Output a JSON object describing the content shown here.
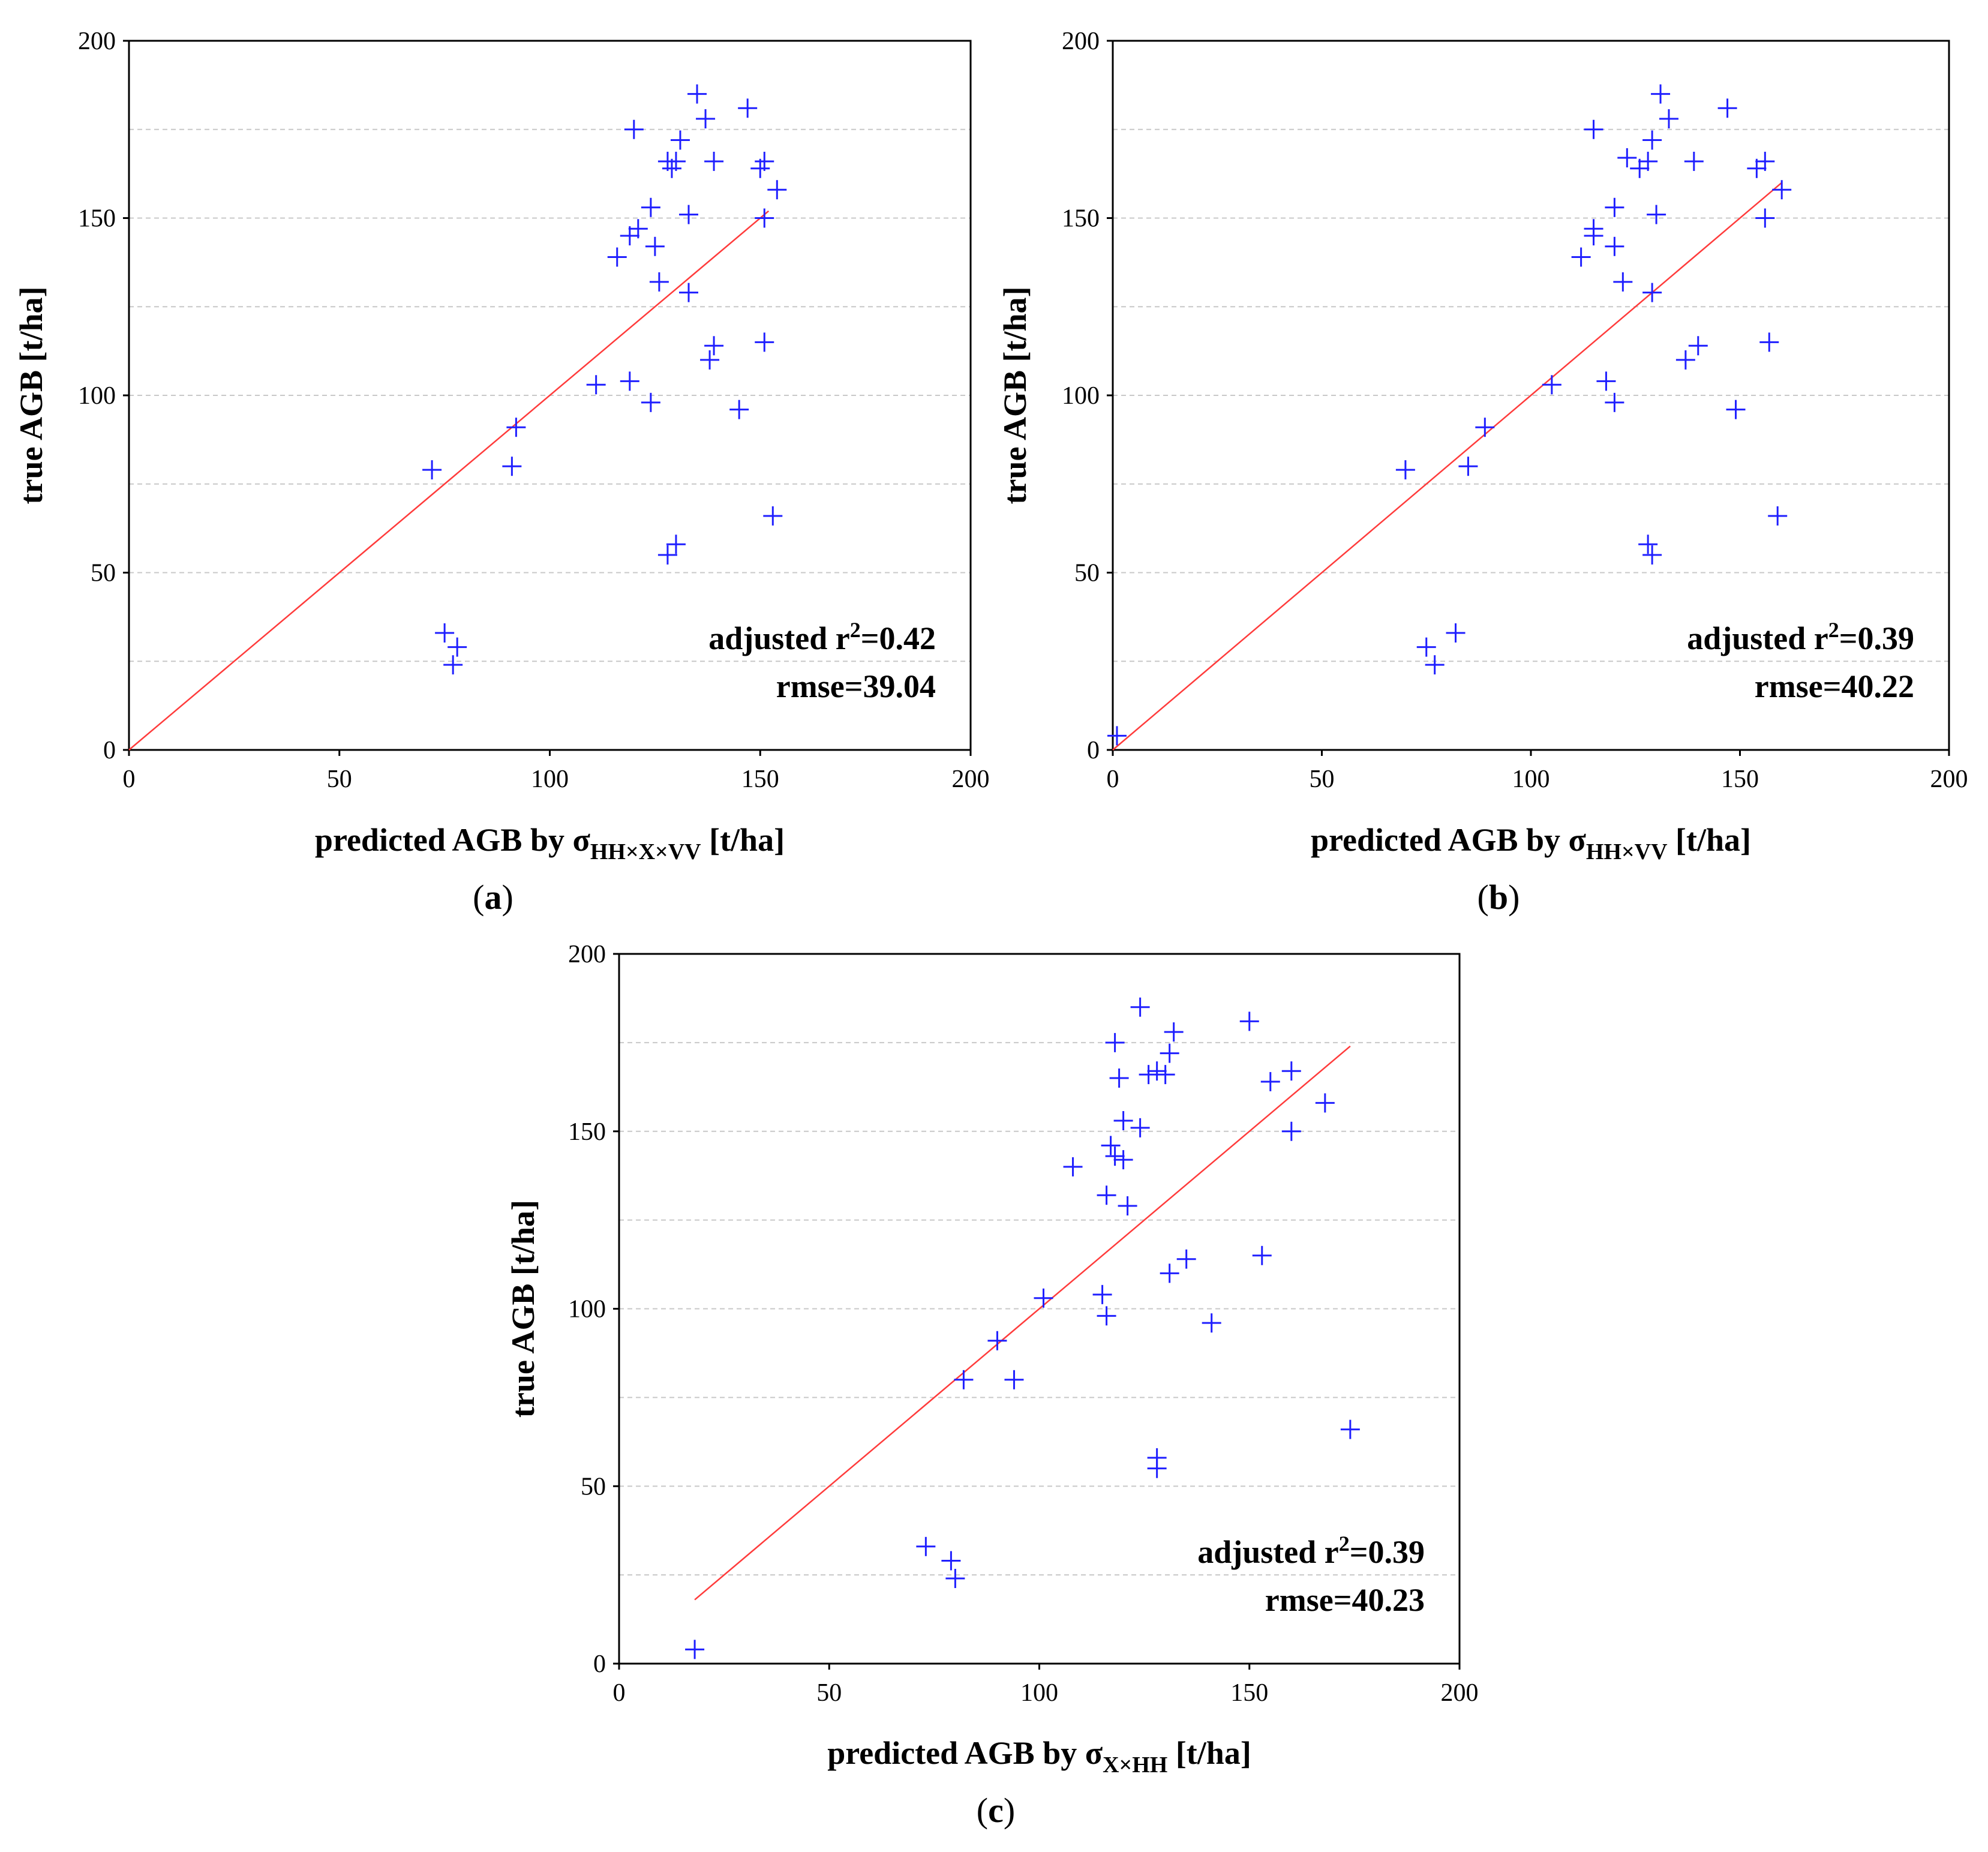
{
  "chart_data": [
    {
      "type": "scatter",
      "panel": "a",
      "caption_letter": "a",
      "xlabel_prefix": "predicted AGB by σ",
      "xlabel_subscript": "HH×X×VV",
      "xlabel_suffix": " [t/ha]",
      "ylabel": "true AGB [t/ha]",
      "xlim": [
        0,
        200
      ],
      "ylim": [
        0,
        200
      ],
      "xticks": [
        "0",
        "50",
        "100",
        "150",
        "200"
      ],
      "yticks": [
        "0",
        "50",
        "100",
        "150",
        "200"
      ],
      "grid": "horizontal dashed",
      "annotation_r2_prefix": "adjusted r",
      "annotation_r2_sup": "2",
      "annotation_r2_value": "=0.42",
      "annotation_rmse": "rmse=39.04",
      "fit_line": {
        "x": [
          0,
          152
        ],
        "y": [
          0,
          152
        ]
      },
      "points": [
        [
          72,
          79
        ],
        [
          75,
          33
        ],
        [
          78,
          29
        ],
        [
          77,
          24
        ],
        [
          91,
          80
        ],
        [
          92,
          91
        ],
        [
          111,
          103
        ],
        [
          119,
          104
        ],
        [
          124,
          98
        ],
        [
          116,
          139
        ],
        [
          119,
          145
        ],
        [
          121,
          147
        ],
        [
          124,
          153
        ],
        [
          125,
          142
        ],
        [
          126,
          132
        ],
        [
          120,
          175
        ],
        [
          128,
          166
        ],
        [
          129,
          164
        ],
        [
          130,
          166
        ],
        [
          131,
          172
        ],
        [
          133,
          151
        ],
        [
          133,
          129
        ],
        [
          135,
          185
        ],
        [
          137,
          178
        ],
        [
          139,
          166
        ],
        [
          138,
          110
        ],
        [
          139,
          114
        ],
        [
          128,
          55
        ],
        [
          130,
          58
        ],
        [
          145,
          96
        ],
        [
          147,
          181
        ],
        [
          150,
          164
        ],
        [
          151,
          166
        ],
        [
          151,
          150
        ],
        [
          151,
          115
        ],
        [
          153,
          66
        ],
        [
          154,
          158
        ]
      ]
    },
    {
      "type": "scatter",
      "panel": "b",
      "caption_letter": "b",
      "xlabel_prefix": "predicted AGB by σ",
      "xlabel_subscript": "HH×VV",
      "xlabel_suffix": " [t/ha]",
      "ylabel": "true AGB [t/ha]",
      "xlim": [
        0,
        200
      ],
      "ylim": [
        0,
        200
      ],
      "xticks": [
        "0",
        "50",
        "100",
        "150",
        "200"
      ],
      "yticks": [
        "0",
        "50",
        "100",
        "150",
        "200"
      ],
      "grid": "horizontal dashed",
      "annotation_r2_prefix": "adjusted r",
      "annotation_r2_sup": "2",
      "annotation_r2_value": "=0.39",
      "annotation_rmse": "rmse=40.22",
      "fit_line": {
        "x": [
          0,
          160
        ],
        "y": [
          0,
          160
        ]
      },
      "points": [
        [
          1,
          4
        ],
        [
          70,
          79
        ],
        [
          75,
          29
        ],
        [
          77,
          24
        ],
        [
          82,
          33
        ],
        [
          85,
          80
        ],
        [
          89,
          91
        ],
        [
          105,
          103
        ],
        [
          118,
          104
        ],
        [
          120,
          98
        ],
        [
          112,
          139
        ],
        [
          115,
          145
        ],
        [
          115,
          147
        ],
        [
          120,
          153
        ],
        [
          120,
          142
        ],
        [
          122,
          132
        ],
        [
          115,
          175
        ],
        [
          123,
          167
        ],
        [
          126,
          164
        ],
        [
          128,
          166
        ],
        [
          129,
          172
        ],
        [
          130,
          151
        ],
        [
          129,
          129
        ],
        [
          131,
          185
        ],
        [
          133,
          178
        ],
        [
          139,
          166
        ],
        [
          137,
          110
        ],
        [
          140,
          114
        ],
        [
          128,
          58
        ],
        [
          129,
          55
        ],
        [
          149,
          96
        ],
        [
          147,
          181
        ],
        [
          154,
          164
        ],
        [
          156,
          166
        ],
        [
          156,
          150
        ],
        [
          157,
          115
        ],
        [
          159,
          66
        ],
        [
          160,
          158
        ]
      ]
    },
    {
      "type": "scatter",
      "panel": "c",
      "caption_letter": "c",
      "xlabel_prefix": "predicted AGB by σ",
      "xlabel_subscript": "X×HH",
      "xlabel_suffix": " [t/ha]",
      "ylabel": "true AGB [t/ha]",
      "xlim": [
        0,
        200
      ],
      "ylim": [
        0,
        200
      ],
      "xticks": [
        "0",
        "50",
        "100",
        "150",
        "200"
      ],
      "yticks": [
        "0",
        "50",
        "100",
        "150",
        "200"
      ],
      "grid": "horizontal dashed",
      "annotation_r2_prefix": "adjusted r",
      "annotation_r2_sup": "2",
      "annotation_r2_value": "=0.39",
      "annotation_rmse": "rmse=40.23",
      "fit_line": {
        "x": [
          18,
          174
        ],
        "y": [
          18,
          174
        ]
      },
      "points": [
        [
          18,
          4
        ],
        [
          73,
          33
        ],
        [
          79,
          29
        ],
        [
          80,
          24
        ],
        [
          82,
          80
        ],
        [
          94,
          80
        ],
        [
          90,
          91
        ],
        [
          101,
          103
        ],
        [
          115,
          104
        ],
        [
          116,
          98
        ],
        [
          108,
          140
        ],
        [
          117,
          146
        ],
        [
          118,
          143
        ],
        [
          120,
          142
        ],
        [
          120,
          153
        ],
        [
          116,
          132
        ],
        [
          118,
          175
        ],
        [
          119,
          165
        ],
        [
          121,
          129
        ],
        [
          124,
          151
        ],
        [
          124,
          185
        ],
        [
          126,
          166
        ],
        [
          128,
          167
        ],
        [
          130,
          166
        ],
        [
          131,
          172
        ],
        [
          132,
          178
        ],
        [
          131,
          110
        ],
        [
          135,
          114
        ],
        [
          128,
          55
        ],
        [
          128,
          58
        ],
        [
          141,
          96
        ],
        [
          150,
          181
        ],
        [
          153,
          115
        ],
        [
          155,
          164
        ],
        [
          160,
          167
        ],
        [
          160,
          150
        ],
        [
          168,
          158
        ],
        [
          174,
          66
        ]
      ]
    }
  ],
  "colors": {
    "marker": "#1f1fff",
    "fit_line": "#ff3b3b",
    "grid": "#c8c8c8",
    "axes": "#000000"
  }
}
